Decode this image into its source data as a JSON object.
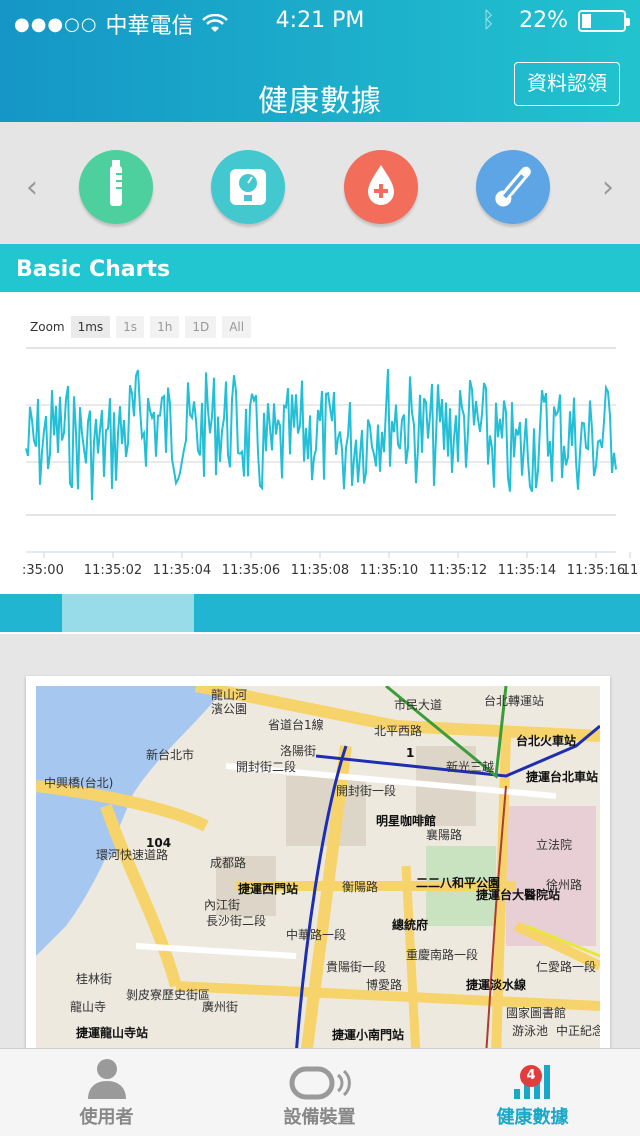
{
  "status_bar": {
    "signal_dots": "●●●○○",
    "carrier": "中華電信",
    "time": "4:21 PM",
    "battery_percent": "22%",
    "battery_level": 0.22
  },
  "header": {
    "title": "健康數據",
    "claim_button": "資料認領"
  },
  "categories": [
    {
      "icon": "thermometer-tube-icon",
      "color": "#4ecf9e"
    },
    {
      "icon": "scale-icon",
      "color": "#44c8d0"
    },
    {
      "icon": "blood-drop-icon",
      "color": "#f36d5b"
    },
    {
      "icon": "thermometer-icon",
      "color": "#5ea5e6"
    }
  ],
  "chart": {
    "title": "Basic Charts",
    "zoom_label": "Zoom",
    "zoom_options": [
      "1ms",
      "1s",
      "1h",
      "1D",
      "All"
    ],
    "zoom_selected": "1ms"
  },
  "chart_data": {
    "type": "line",
    "x_ticks": [
      ":35:00",
      "11:35:02",
      "11:35:04",
      "11:35:06",
      "11:35:08",
      "11:35:10",
      "11:35:12",
      "11:35:14",
      "11:35:16",
      "11"
    ],
    "series_color": "#23bfd6",
    "grid": true
  },
  "map": {
    "labels": [
      {
        "text": "龍山河",
        "cls": ""
      },
      {
        "text": "濱公園",
        "cls": ""
      },
      {
        "text": "省道台1線",
        "cls": "road"
      },
      {
        "text": "北平西路",
        "cls": "road"
      },
      {
        "text": "市民大道",
        "cls": "road"
      },
      {
        "text": "台北轉運站",
        "cls": ""
      },
      {
        "text": "台北火車站",
        "cls": "bold"
      },
      {
        "text": "中興橋(台北)",
        "cls": "road"
      },
      {
        "text": "開封街二段",
        "cls": "road"
      },
      {
        "text": "洛陽街",
        "cls": "road"
      },
      {
        "text": "開封街一段",
        "cls": "road"
      },
      {
        "text": "新光三越",
        "cls": ""
      },
      {
        "text": "捷運台北車站",
        "cls": "bold"
      },
      {
        "text": "明星咖啡館",
        "cls": "bold"
      },
      {
        "text": "襄陽路",
        "cls": "road"
      },
      {
        "text": "成都路",
        "cls": "road"
      },
      {
        "text": "捷運西門站",
        "cls": "bold"
      },
      {
        "text": "衡陽路",
        "cls": "road"
      },
      {
        "text": "二二八和平公園",
        "cls": "bold"
      },
      {
        "text": "捷運台大醫院站",
        "cls": "bold"
      },
      {
        "text": "立法院",
        "cls": ""
      },
      {
        "text": "徐州路",
        "cls": "road"
      },
      {
        "text": "內江街",
        "cls": "road"
      },
      {
        "text": "長沙街二段",
        "cls": "road"
      },
      {
        "text": "總統府",
        "cls": "bold"
      },
      {
        "text": "貴陽街一段",
        "cls": "road"
      },
      {
        "text": "仁愛路一段",
        "cls": "road"
      },
      {
        "text": "桂林街",
        "cls": "road"
      },
      {
        "text": "剝皮寮歷史街區",
        "cls": ""
      },
      {
        "text": "廣州街",
        "cls": "road"
      },
      {
        "text": "龍山寺",
        "cls": ""
      },
      {
        "text": "捷運龍山寺站",
        "cls": "bold"
      },
      {
        "text": "捷運小南門站",
        "cls": "bold"
      },
      {
        "text": "國家圖書館",
        "cls": ""
      },
      {
        "text": "游泳池",
        "cls": ""
      },
      {
        "text": "中正紀念公園",
        "cls": ""
      },
      {
        "text": "104",
        "cls": "bold"
      },
      {
        "text": "1",
        "cls": "bold"
      },
      {
        "text": "環河快速道路",
        "cls": "road"
      },
      {
        "text": "中華路一段",
        "cls": "road"
      },
      {
        "text": "重慶南路一段",
        "cls": "road"
      },
      {
        "text": "博愛路",
        "cls": "road"
      },
      {
        "text": "捷運淡水線",
        "cls": "bold"
      },
      {
        "text": "新台北市",
        "cls": "road"
      }
    ]
  },
  "tabs": [
    {
      "label": "使用者",
      "icon": "user-icon"
    },
    {
      "label": "設備裝置",
      "icon": "device-icon"
    },
    {
      "label": "健康數據",
      "icon": "health-data-icon",
      "badge": "4"
    }
  ]
}
